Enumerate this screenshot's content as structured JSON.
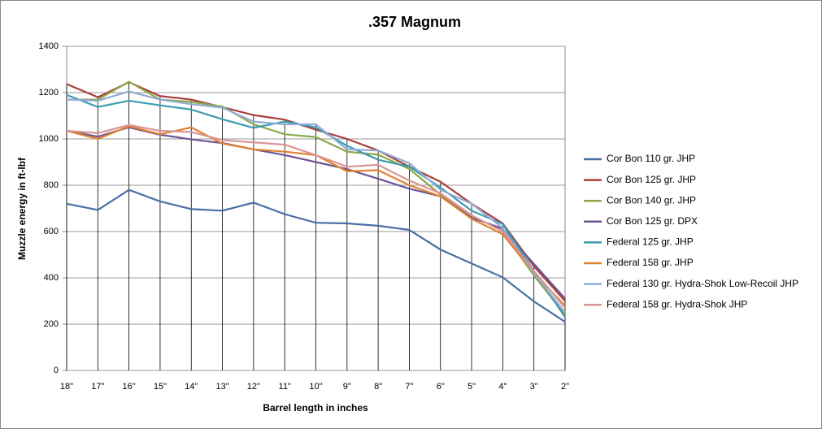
{
  "chart_data": {
    "type": "line",
    "title": ".357 Magnum",
    "x_label": "Barrel length in inches",
    "y_label": "Muzzle energy in ft-lbf",
    "categories": [
      "18\"",
      "17\"",
      "16\"",
      "15\"",
      "14\"",
      "13\"",
      "12\"",
      "11\"",
      "10\"",
      "9\"",
      "8\"",
      "7\"",
      "6\"",
      "5\"",
      "4\"",
      "3\"",
      "2\""
    ],
    "ylim": [
      0,
      1400
    ],
    "yticks": [
      0,
      200,
      400,
      600,
      800,
      1000,
      1200,
      1400
    ],
    "grid": true,
    "legend": "right",
    "series": [
      {
        "name": "Cor Bon 110 gr. JHP",
        "color": "#4a6fa5",
        "values": [
          720,
          693,
          780,
          730,
          697,
          690,
          725,
          675,
          638,
          635,
          625,
          607,
          522,
          462,
          402,
          298,
          210
        ]
      },
      {
        "name": "Cor Bon 125 gr. JHP",
        "color": "#a8403c",
        "values": [
          1237,
          1180,
          1245,
          1185,
          1170,
          1137,
          1103,
          1083,
          1040,
          1000,
          950,
          880,
          815,
          720,
          635,
          450,
          300
        ]
      },
      {
        "name": "Cor Bon 140 gr. JHP",
        "color": "#8aa84a",
        "values": [
          1170,
          1170,
          1247,
          1170,
          1160,
          1140,
          1063,
          1020,
          1008,
          945,
          932,
          870,
          760,
          670,
          600,
          410,
          240
        ]
      },
      {
        "name": "Cor Bon 125 gr. DPX",
        "color": "#6e5494",
        "values": [
          1035,
          1010,
          1050,
          1018,
          998,
          982,
          955,
          930,
          900,
          870,
          828,
          785,
          752,
          660,
          612,
          460,
          310
        ]
      },
      {
        "name": "Federal 125 gr. JHP",
        "color": "#3d9cb0",
        "values": [
          1190,
          1138,
          1165,
          1145,
          1127,
          1085,
          1048,
          1075,
          1050,
          970,
          910,
          880,
          790,
          690,
          632,
          430,
          230
        ]
      },
      {
        "name": "Federal 158 gr. JHP",
        "color": "#e2822f",
        "values": [
          1035,
          1000,
          1055,
          1020,
          1050,
          980,
          955,
          945,
          930,
          860,
          865,
          800,
          752,
          655,
          588,
          420,
          280
        ]
      },
      {
        "name": "Federal 130 gr. Hydra-Shok Low-Recoil JHP",
        "color": "#93abd8",
        "values": [
          1170,
          1165,
          1205,
          1170,
          1150,
          1135,
          1075,
          1063,
          1063,
          955,
          950,
          895,
          780,
          720,
          615,
          420,
          250
        ]
      },
      {
        "name": "Federal 158 gr. Hydra-Shok JHP",
        "color": "#d99594",
        "values": [
          1035,
          1025,
          1060,
          1035,
          1030,
          995,
          985,
          975,
          930,
          880,
          888,
          820,
          765,
          670,
          600,
          430,
          270
        ]
      }
    ]
  }
}
